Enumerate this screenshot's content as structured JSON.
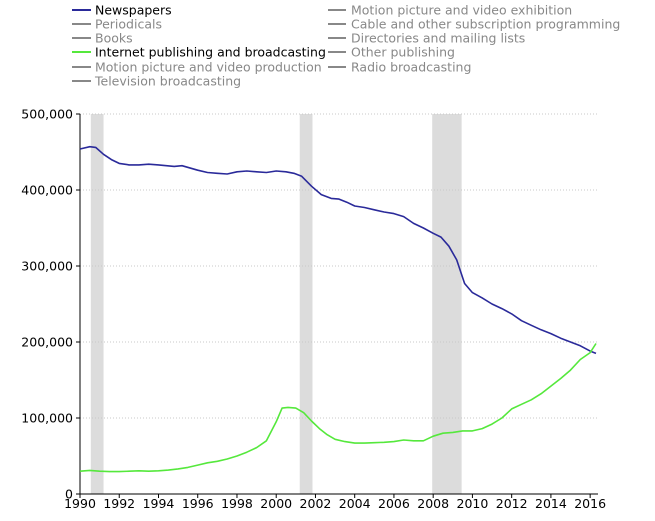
{
  "chart_data": {
    "type": "line",
    "title": "",
    "xlabel": "",
    "ylabel": "",
    "xlim": [
      1990,
      2016.4
    ],
    "ylim": [
      0,
      500000
    ],
    "grid": true,
    "legend_position": "top",
    "x_ticks": [
      1990,
      1992,
      1994,
      1996,
      1998,
      2000,
      2002,
      2004,
      2006,
      2008,
      2010,
      2012,
      2014,
      2016
    ],
    "x_tick_labels": [
      "1990",
      "1992",
      "1994",
      "1996",
      "1998",
      "2000",
      "2002",
      "2004",
      "2006",
      "2008",
      "2010",
      "2012",
      "2014",
      "2016"
    ],
    "y_ticks": [
      0,
      100000,
      200000,
      300000,
      400000,
      500000
    ],
    "y_tick_labels": [
      "0",
      "100,000",
      "200,000",
      "300,000",
      "400,000",
      "500,000"
    ],
    "recessions": [
      [
        1990.55,
        1991.2
      ],
      [
        2001.2,
        2001.85
      ],
      [
        2007.95,
        2009.45
      ]
    ],
    "legend": [
      {
        "name": "Newspapers",
        "color": "#2a2a9a",
        "active": true
      },
      {
        "name": "Periodicals",
        "color": "#888888",
        "active": false
      },
      {
        "name": "Books",
        "color": "#888888",
        "active": false
      },
      {
        "name": "Internet publishing and broadcasting",
        "color": "#55e83c",
        "active": true
      },
      {
        "name": "Motion picture and video production",
        "color": "#888888",
        "active": false
      },
      {
        "name": "Television broadcasting",
        "color": "#888888",
        "active": false
      },
      {
        "name": "Motion picture and video exhibition",
        "color": "#888888",
        "active": false
      },
      {
        "name": "Cable and other subscription programming",
        "color": "#888888",
        "active": false
      },
      {
        "name": "Directories and mailing lists",
        "color": "#888888",
        "active": false
      },
      {
        "name": "Other publishing",
        "color": "#888888",
        "active": false
      },
      {
        "name": "Radio broadcasting",
        "color": "#888888",
        "active": false
      }
    ],
    "series": [
      {
        "name": "Newspapers",
        "color": "#2a2a9a",
        "x": [
          1990.0,
          1990.5,
          1990.8,
          1991.2,
          1991.6,
          1992.0,
          1992.5,
          1993.0,
          1993.5,
          1994.0,
          1994.8,
          1995.2,
          1996.0,
          1996.5,
          1997.0,
          1997.5,
          1998.0,
          1998.5,
          1999.0,
          1999.5,
          2000.0,
          2000.5,
          2000.9,
          2001.3,
          2001.8,
          2002.3,
          2002.8,
          2003.2,
          2003.6,
          2004.0,
          2004.5,
          2005.0,
          2005.5,
          2006.0,
          2006.5,
          2007.0,
          2007.5,
          2008.0,
          2008.4,
          2008.8,
          2009.2,
          2009.6,
          2010.0,
          2010.5,
          2011.0,
          2011.5,
          2012.0,
          2012.5,
          2013.0,
          2013.5,
          2014.0,
          2014.5,
          2015.0,
          2015.5,
          2016.0,
          2016.3
        ],
        "values": [
          454000,
          457000,
          456000,
          447000,
          440000,
          435000,
          433000,
          433000,
          434000,
          433000,
          431000,
          432000,
          426000,
          423000,
          422000,
          421000,
          424000,
          425000,
          424000,
          423000,
          425000,
          424000,
          422000,
          418000,
          405000,
          394000,
          389000,
          388000,
          384000,
          379000,
          377000,
          374000,
          371000,
          369000,
          365000,
          356000,
          350000,
          343000,
          338000,
          326000,
          308000,
          277000,
          265000,
          258000,
          250000,
          244000,
          237000,
          228000,
          222000,
          216000,
          211000,
          205000,
          200000,
          195000,
          188000,
          185000
        ]
      },
      {
        "name": "Internet publishing and broadcasting",
        "color": "#55e83c",
        "x": [
          1990.0,
          1990.5,
          1991.0,
          1991.5,
          1992.0,
          1992.5,
          1993.0,
          1993.5,
          1994.0,
          1994.5,
          1995.0,
          1995.5,
          1996.0,
          1996.5,
          1997.0,
          1997.5,
          1998.0,
          1998.5,
          1999.0,
          1999.5,
          2000.0,
          2000.3,
          2000.6,
          2001.0,
          2001.4,
          2001.8,
          2002.2,
          2002.6,
          2003.0,
          2003.5,
          2004.0,
          2004.5,
          2005.0,
          2005.5,
          2006.0,
          2006.5,
          2007.0,
          2007.5,
          2008.0,
          2008.5,
          2009.0,
          2009.5,
          2010.0,
          2010.5,
          2011.0,
          2011.5,
          2012.0,
          2012.5,
          2013.0,
          2013.5,
          2014.0,
          2014.5,
          2015.0,
          2015.5,
          2016.0,
          2016.3
        ],
        "values": [
          30000,
          31000,
          30000,
          29500,
          29500,
          30000,
          30500,
          30000,
          30500,
          31500,
          33000,
          35000,
          38000,
          41000,
          43000,
          46000,
          50000,
          55000,
          61000,
          70000,
          95000,
          113000,
          114000,
          113000,
          107000,
          96000,
          86000,
          78000,
          72000,
          69000,
          67000,
          67000,
          67500,
          68000,
          69000,
          71000,
          70000,
          70000,
          76000,
          80000,
          81000,
          83000,
          83000,
          86000,
          92000,
          100000,
          112000,
          118000,
          124000,
          132000,
          142000,
          152000,
          163000,
          177000,
          186000,
          198000
        ]
      }
    ]
  }
}
